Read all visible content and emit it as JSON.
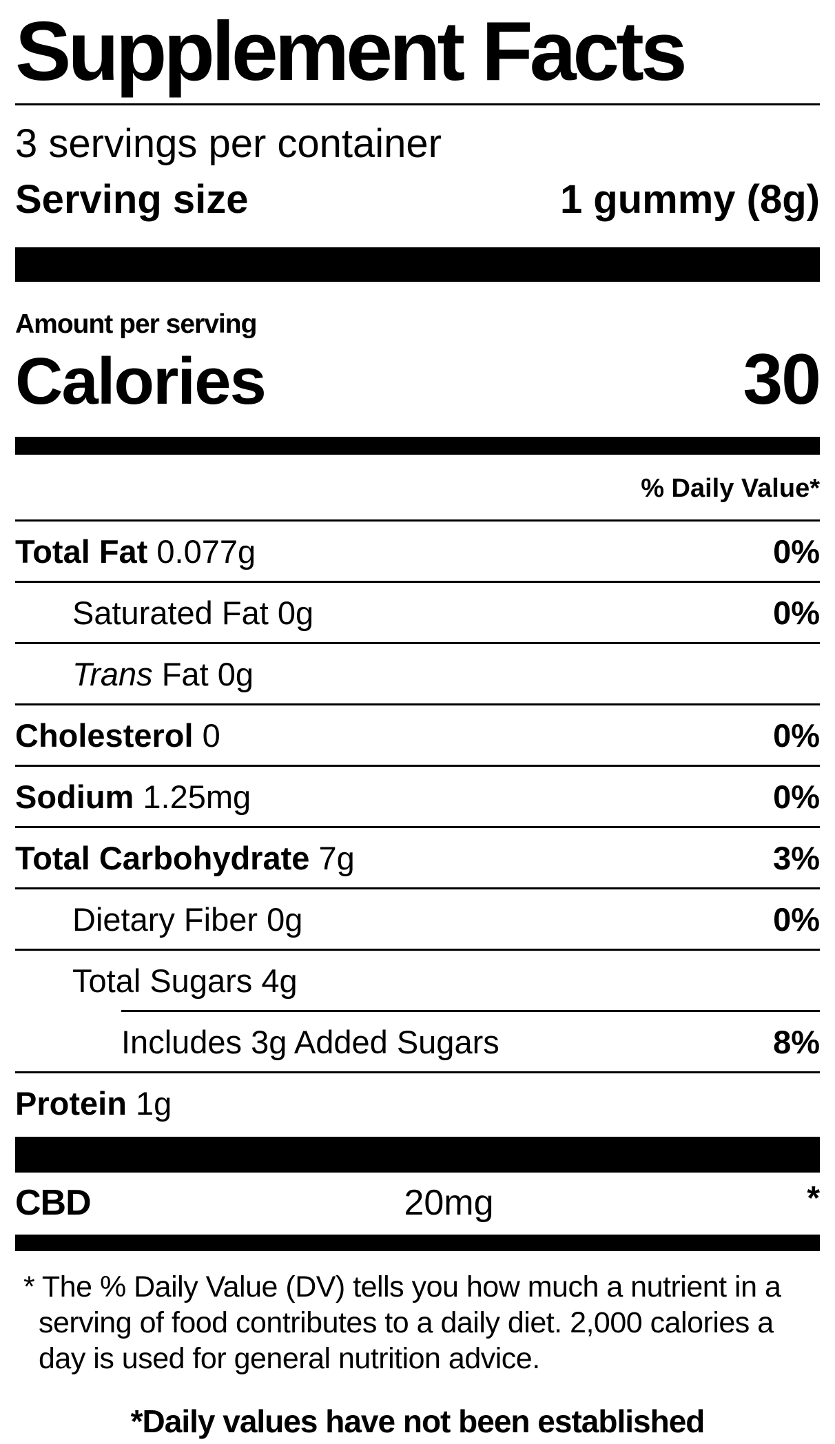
{
  "colors": {
    "text": "#000000",
    "background": "#ffffff"
  },
  "header": {
    "title": "Supplement Facts",
    "servings_per_container": "3 servings per container",
    "serving_size_label": "Serving size",
    "serving_size_value": "1 gummy (8g)"
  },
  "calories_section": {
    "amount_per_serving": "Amount per serving",
    "calories_label": "Calories",
    "calories_value": "30"
  },
  "daily_value_header": "% Daily Value*",
  "nutrients": {
    "total_fat": {
      "name": "Total Fat",
      "amount": "0.077g",
      "dv": "0%"
    },
    "saturated_fat": {
      "name": "Saturated Fat",
      "amount": "0g",
      "dv": "0%"
    },
    "trans_fat": {
      "name_italic": "Trans",
      "name": "Fat",
      "amount": "0g"
    },
    "cholesterol": {
      "name": "Cholesterol",
      "amount": "0",
      "dv": "0%"
    },
    "sodium": {
      "name": "Sodium",
      "amount": "1.25mg",
      "dv": "0%"
    },
    "total_carbohydrate": {
      "name": "Total Carbohydrate",
      "amount": "7g",
      "dv": "3%"
    },
    "dietary_fiber": {
      "name": "Dietary Fiber",
      "amount": "0g",
      "dv": "0%"
    },
    "total_sugars": {
      "name": "Total Sugars",
      "amount": "4g"
    },
    "added_sugars": {
      "name": "Includes 3g Added Sugars",
      "dv": "8%"
    },
    "protein": {
      "name": "Protein",
      "amount": "1g"
    }
  },
  "actives": {
    "cbd": {
      "name": "CBD",
      "amount": "20mg",
      "dv_note": "*"
    }
  },
  "footnotes": {
    "daily_value_note": "* The % Daily Value (DV) tells you how much a nutrient in a serving of food contributes to a daily diet. 2,000 calories a day is used for general nutrition advice.",
    "established_note": "*Daily values have not been established"
  }
}
